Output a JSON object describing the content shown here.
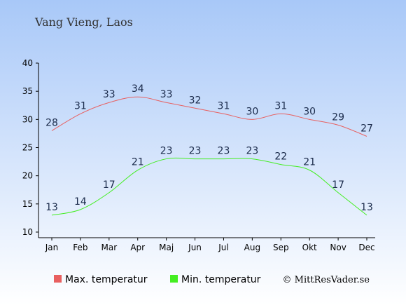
{
  "title": "Vang Vieng, Laos",
  "credit": "© MittResVader.se",
  "colors": {
    "bg_top": "#a8c8f8",
    "bg_bottom": "#ffffff",
    "max_line": "#e86060",
    "min_line": "#44ee22",
    "axis": "#000000"
  },
  "chart_data": {
    "type": "line",
    "categories": [
      "Jan",
      "Feb",
      "Mar",
      "Apr",
      "Maj",
      "Jun",
      "Jul",
      "Aug",
      "Sep",
      "Okt",
      "Nov",
      "Dec"
    ],
    "ylim": [
      10,
      40
    ],
    "yticks": [
      10,
      15,
      20,
      25,
      30,
      35,
      40
    ],
    "grid": false,
    "legend_position": "bottom",
    "series": [
      {
        "name": "Max. temperatur",
        "color": "#e86060",
        "values": [
          28,
          31,
          33,
          34,
          33,
          32,
          31,
          30,
          31,
          30,
          29,
          27
        ]
      },
      {
        "name": "Min. temperatur",
        "color": "#44ee22",
        "values": [
          13,
          14,
          17,
          21,
          23,
          23,
          23,
          23,
          22,
          21,
          17,
          13
        ]
      }
    ]
  }
}
